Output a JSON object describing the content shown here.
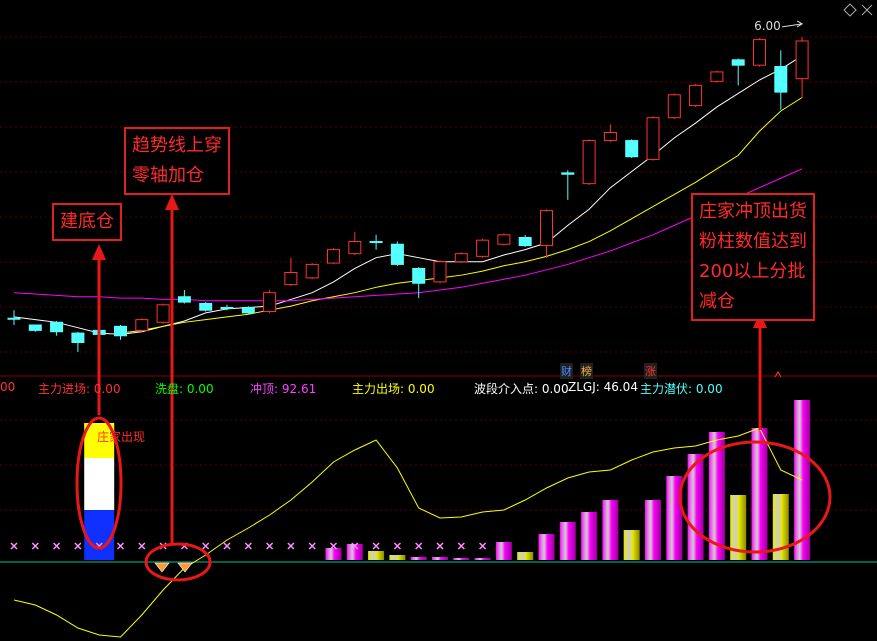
{
  "chart_data": [
    {
      "type": "candlestick",
      "ylim": [
        3.6,
        6.2
      ],
      "up_color": "#ff3232",
      "down_color": "#54ffff",
      "open": [
        3.91,
        3.86,
        3.88,
        3.8,
        3.82,
        3.85,
        3.82,
        3.88,
        4.07,
        4.02,
        3.99,
        3.99,
        3.96,
        4.16,
        4.21,
        4.32,
        4.39,
        4.48,
        4.46,
        4.28,
        4.18,
        4.33,
        4.37,
        4.46,
        4.51,
        4.45,
        4.99,
        4.91,
        5.23,
        5.23,
        5.09,
        5.4,
        5.49,
        5.67,
        5.83,
        5.79,
        5.78,
        5.69
      ],
      "high": [
        3.97,
        3.86,
        3.89,
        3.81,
        3.83,
        3.86,
        3.91,
        4.02,
        4.12,
        4.03,
        4.01,
        4.0,
        4.12,
        4.36,
        4.32,
        4.43,
        4.55,
        4.53,
        4.48,
        4.29,
        4.34,
        4.4,
        4.5,
        4.54,
        4.53,
        4.72,
        5.01,
        5.24,
        5.35,
        5.24,
        5.41,
        5.58,
        5.65,
        5.75,
        5.84,
        5.99,
        5.9,
        6.0
      ],
      "low": [
        3.86,
        3.81,
        3.78,
        3.66,
        3.78,
        3.75,
        3.81,
        3.87,
        4.02,
        3.96,
        3.97,
        3.94,
        3.95,
        4.15,
        4.2,
        4.31,
        4.38,
        4.42,
        4.3,
        4.06,
        4.17,
        4.32,
        4.36,
        4.45,
        4.44,
        4.36,
        4.79,
        4.9,
        5.22,
        5.1,
        5.08,
        5.39,
        5.48,
        5.66,
        5.64,
        5.78,
        5.46,
        5.55
      ],
      "close": [
        3.91,
        3.82,
        3.81,
        3.73,
        3.79,
        3.78,
        3.9,
        4.01,
        4.03,
        3.97,
        3.99,
        3.95,
        4.1,
        4.25,
        4.31,
        4.42,
        4.48,
        4.48,
        4.31,
        4.17,
        4.33,
        4.39,
        4.49,
        4.53,
        4.45,
        4.71,
        4.98,
        5.23,
        5.29,
        5.11,
        5.4,
        5.57,
        5.64,
        5.74,
        5.79,
        5.98,
        5.59,
        5.97
      ],
      "lines": [
        {
          "color": "#ffffff",
          "values": [
            3.92,
            3.9,
            3.88,
            3.84,
            3.8,
            3.79,
            3.81,
            3.85,
            3.89,
            3.95,
            3.98,
            3.99,
            4.0,
            4.05,
            4.1,
            4.18,
            4.28,
            4.36,
            4.39,
            4.36,
            4.33,
            4.33,
            4.33,
            4.38,
            4.42,
            4.47,
            4.6,
            4.72,
            4.88,
            5.0,
            5.12,
            5.25,
            5.36,
            5.48,
            5.58,
            5.68,
            5.76,
            5.86
          ]
        },
        {
          "color": "#ffff00",
          "values": [
            null,
            null,
            null,
            null,
            null,
            3.8,
            3.82,
            3.85,
            3.88,
            3.9,
            3.92,
            3.94,
            3.97,
            4.0,
            4.04,
            4.07,
            4.1,
            4.14,
            4.17,
            4.19,
            4.21,
            4.23,
            4.26,
            4.3,
            4.33,
            4.37,
            4.42,
            4.48,
            4.56,
            4.65,
            4.74,
            4.83,
            4.92,
            5.02,
            5.12,
            5.3,
            5.45,
            5.55
          ]
        },
        {
          "color": "#ff00ff",
          "values": [
            4.1,
            4.09,
            4.08,
            4.07,
            4.07,
            4.06,
            4.06,
            4.05,
            4.05,
            4.04,
            4.04,
            4.04,
            4.04,
            4.04,
            4.05,
            4.06,
            4.07,
            4.08,
            4.09,
            4.1,
            4.12,
            4.14,
            4.17,
            4.2,
            4.23,
            4.27,
            4.31,
            4.36,
            4.41,
            4.47,
            4.53,
            4.6,
            4.67,
            4.74,
            4.81,
            4.88,
            4.95,
            5.02
          ]
        }
      ],
      "price_label": {
        "value": 6,
        "label": "6.00"
      },
      "tags": [
        {
          "text": "财",
          "color": "#4a8cff"
        },
        {
          "text": "榜",
          "color": "#ffb040"
        },
        {
          "text": "涨",
          "color": "#ff3232"
        }
      ],
      "annotations": [
        {
          "lines": [
            "建底仓"
          ]
        },
        {
          "lines": [
            "趋势线上穿",
            "零轴加仓"
          ]
        },
        {
          "lines": [
            "庄家冲顶出货",
            "粉柱数值达到",
            "200以上分批",
            "减仓"
          ]
        }
      ]
    },
    {
      "type": "indicator",
      "ylim": [
        -80,
        165
      ],
      "header": [
        {
          "text": "00",
          "color": "#ff3232"
        },
        {
          "text": "主力进场: 0.00",
          "color": "#ff3232"
        },
        {
          "text": "洗盘: 0.00",
          "color": "#00ff00"
        },
        {
          "text": "冲顶: 92.61",
          "color": "#ff40ff"
        },
        {
          "text": "主力出场: 0.00",
          "color": "#ffff00"
        },
        {
          "text": "波段介入点: 0.00",
          "color": "#ffffff"
        },
        {
          "text": "ZLGJ: 46.04",
          "color": "#ffffff"
        },
        {
          "text": "主力潜伏: 0.00",
          "color": "#54ffff"
        }
      ],
      "note": "庄家出现",
      "series": [
        {
          "type": "stack",
          "color": "#1030ff",
          "values": [
            null,
            null,
            null,
            null,
            50,
            null,
            null,
            null,
            null,
            null,
            null,
            null,
            null,
            null,
            null,
            null,
            null,
            null,
            null,
            null,
            null,
            null,
            null,
            null,
            null,
            null,
            null,
            null,
            null,
            null,
            null,
            null,
            null,
            null,
            null,
            null,
            null,
            null
          ]
        },
        {
          "type": "stack",
          "color": "#ffffff",
          "values": [
            null,
            null,
            null,
            null,
            52,
            null,
            null,
            null,
            null,
            null,
            null,
            null,
            null,
            null,
            null,
            null,
            null,
            null,
            null,
            null,
            null,
            null,
            null,
            null,
            null,
            null,
            null,
            null,
            null,
            null,
            null,
            null,
            null,
            null,
            null,
            null,
            null,
            null
          ]
        },
        {
          "type": "stack",
          "color": "#ffff00",
          "values": [
            null,
            null,
            null,
            null,
            35,
            null,
            null,
            null,
            null,
            null,
            null,
            null,
            null,
            null,
            null,
            null,
            null,
            null,
            null,
            null,
            null,
            null,
            null,
            null,
            null,
            null,
            null,
            null,
            null,
            null,
            null,
            null,
            null,
            null,
            null,
            null,
            null,
            null
          ]
        },
        {
          "type": "bar",
          "color": "#ff00ff",
          "values": [
            null,
            null,
            null,
            null,
            null,
            null,
            null,
            null,
            null,
            null,
            null,
            null,
            null,
            null,
            null,
            12,
            16,
            null,
            null,
            3,
            3,
            2,
            2,
            18,
            null,
            26,
            38,
            48,
            60,
            null,
            60,
            84,
            106,
            128,
            null,
            132,
            null,
            160
          ]
        },
        {
          "type": "bar",
          "color": "#e8e800",
          "values": [
            null,
            null,
            null,
            null,
            null,
            null,
            null,
            null,
            null,
            null,
            null,
            null,
            null,
            null,
            null,
            null,
            null,
            9,
            5,
            null,
            null,
            null,
            null,
            null,
            8,
            null,
            null,
            null,
            null,
            30,
            null,
            null,
            null,
            null,
            65,
            null,
            66,
            null
          ]
        },
        {
          "type": "marker",
          "color": "#ff90ff",
          "values": [
            14,
            14,
            14,
            14,
            14,
            14,
            14,
            14,
            14,
            14,
            14,
            14,
            14,
            14,
            14,
            14,
            14,
            14,
            14,
            14,
            14,
            14,
            14,
            null,
            null,
            null,
            null,
            null,
            null,
            null,
            null,
            null,
            null,
            null,
            null,
            null,
            null,
            null
          ]
        },
        {
          "type": "line",
          "color": "#ffff00",
          "values": [
            -40,
            -45,
            -55,
            -68,
            -75,
            -77,
            -55,
            -30,
            -8,
            5,
            20,
            32,
            45,
            60,
            78,
            98,
            110,
            120,
            92,
            52,
            42,
            43,
            48,
            50,
            60,
            72,
            82,
            88,
            90,
            100,
            108,
            112,
            114,
            120,
            124,
            132,
            90,
            80
          ]
        }
      ]
    }
  ]
}
